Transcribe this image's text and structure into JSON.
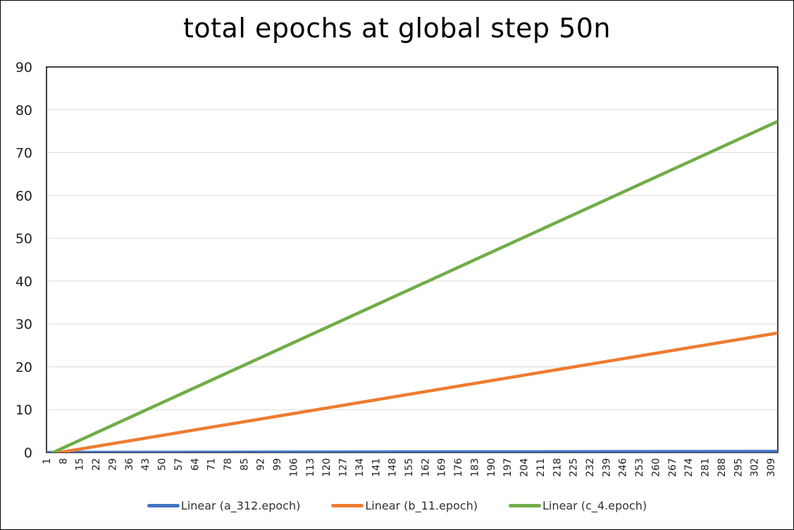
{
  "chart_data": {
    "type": "line",
    "title": "total epochs at global step 50n",
    "xlabel": "",
    "ylabel": "",
    "ylim": [
      0,
      90
    ],
    "yticks": [
      "0",
      "10",
      "20",
      "30",
      "40",
      "50",
      "60",
      "70",
      "80",
      "90"
    ],
    "xlim": [
      1,
      312
    ],
    "xticks": [
      "1",
      "8",
      "15",
      "22",
      "29",
      "36",
      "43",
      "50",
      "57",
      "64",
      "71",
      "78",
      "85",
      "92",
      "99",
      "106",
      "113",
      "120",
      "127",
      "134",
      "141",
      "148",
      "155",
      "162",
      "169",
      "176",
      "183",
      "190",
      "197",
      "204",
      "211",
      "218",
      "225",
      "232",
      "239",
      "246",
      "253",
      "260",
      "267",
      "274",
      "281",
      "288",
      "295",
      "302",
      "309"
    ],
    "grid": true,
    "legend_position": "bottom",
    "series": [
      {
        "name": "Linear (a_312.epoch)",
        "color": "#4472C4",
        "x": [
          1,
          312
        ],
        "y": [
          0,
          0.25
        ]
      },
      {
        "name": "Linear (b_11.epoch)",
        "color": "#ED7D31",
        "x": [
          1,
          312
        ],
        "y": [
          -0.5,
          27.9
        ]
      },
      {
        "name": "Linear (c_4.epoch)",
        "color": "#70AD47",
        "x": [
          1,
          312
        ],
        "y": [
          -0.7,
          77.3
        ]
      }
    ]
  }
}
